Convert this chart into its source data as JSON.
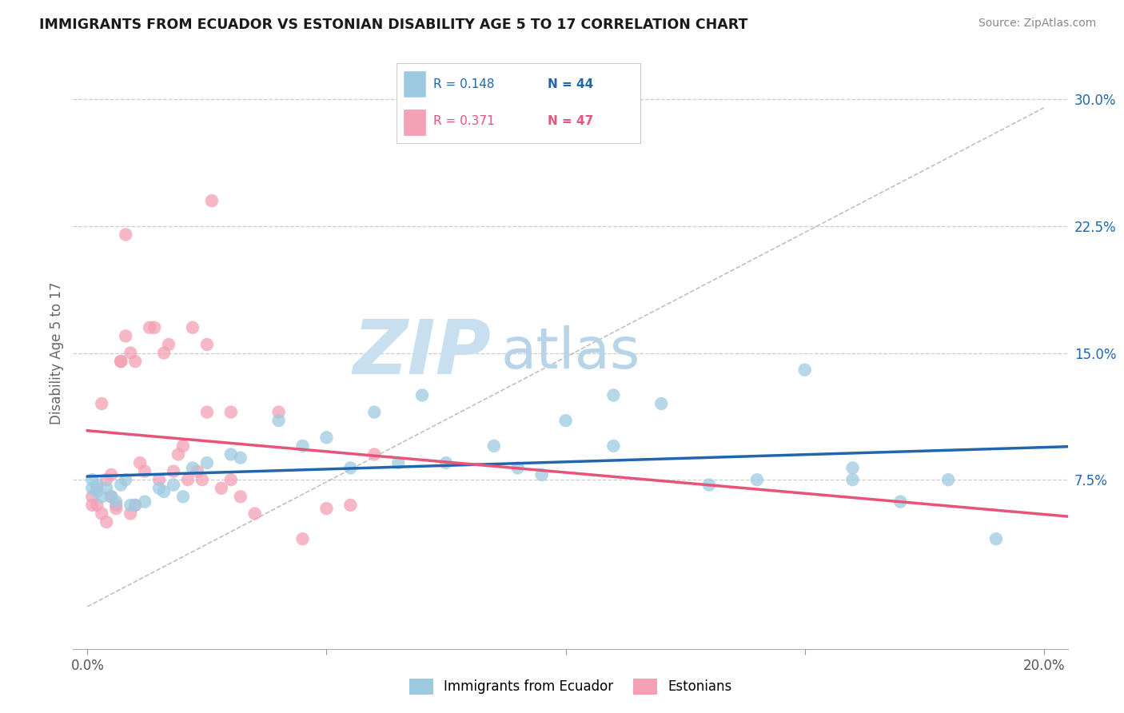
{
  "title": "IMMIGRANTS FROM ECUADOR VS ESTONIAN DISABILITY AGE 5 TO 17 CORRELATION CHART",
  "source": "Source: ZipAtlas.com",
  "ylabel": "Disability Age 5 to 17",
  "xlim": [
    0.0,
    0.205
  ],
  "ylim": [
    -0.025,
    0.325
  ],
  "ytick_right_labels": [
    "7.5%",
    "15.0%",
    "22.5%",
    "30.0%"
  ],
  "ytick_right_vals": [
    0.075,
    0.15,
    0.225,
    0.3
  ],
  "r_ecuador": 0.148,
  "n_ecuador": 44,
  "r_estonian": 0.371,
  "n_estonian": 47,
  "color_ecuador": "#9ecae1",
  "color_estonian": "#f4a0b5",
  "line_color_ecuador": "#2166ac",
  "line_color_estonian": "#e8537a",
  "legend_label_ecuador": "Immigrants from Ecuador",
  "legend_label_estonian": "Estonians",
  "watermark_zip": "ZIP",
  "watermark_atlas": "atlas",
  "watermark_color_zip": "#c8dff0",
  "watermark_color_atlas": "#b8d4e8",
  "ecuador_x": [
    0.001,
    0.001,
    0.002,
    0.002,
    0.003,
    0.004,
    0.005,
    0.006,
    0.007,
    0.008,
    0.009,
    0.01,
    0.012,
    0.015,
    0.016,
    0.018,
    0.02,
    0.022,
    0.025,
    0.03,
    0.032,
    0.04,
    0.045,
    0.05,
    0.055,
    0.06,
    0.065,
    0.07,
    0.075,
    0.085,
    0.09,
    0.095,
    0.1,
    0.11,
    0.11,
    0.12,
    0.13,
    0.14,
    0.15,
    0.16,
    0.17,
    0.18,
    0.19,
    0.16
  ],
  "ecuador_y": [
    0.07,
    0.075,
    0.072,
    0.068,
    0.065,
    0.07,
    0.065,
    0.062,
    0.072,
    0.075,
    0.06,
    0.06,
    0.062,
    0.07,
    0.068,
    0.072,
    0.065,
    0.082,
    0.085,
    0.09,
    0.088,
    0.11,
    0.095,
    0.1,
    0.082,
    0.115,
    0.085,
    0.125,
    0.085,
    0.095,
    0.082,
    0.078,
    0.11,
    0.095,
    0.125,
    0.12,
    0.072,
    0.075,
    0.14,
    0.082,
    0.062,
    0.075,
    0.04,
    0.075
  ],
  "estonian_x": [
    0.001,
    0.001,
    0.002,
    0.002,
    0.003,
    0.003,
    0.004,
    0.004,
    0.005,
    0.005,
    0.006,
    0.006,
    0.007,
    0.007,
    0.008,
    0.008,
    0.009,
    0.009,
    0.01,
    0.01,
    0.011,
    0.012,
    0.013,
    0.014,
    0.015,
    0.016,
    0.017,
    0.018,
    0.019,
    0.02,
    0.021,
    0.022,
    0.023,
    0.024,
    0.025,
    0.026,
    0.028,
    0.03,
    0.032,
    0.035,
    0.04,
    0.045,
    0.05,
    0.055,
    0.06,
    0.03,
    0.025
  ],
  "estonian_y": [
    0.065,
    0.06,
    0.07,
    0.06,
    0.12,
    0.055,
    0.075,
    0.05,
    0.078,
    0.065,
    0.06,
    0.058,
    0.145,
    0.145,
    0.22,
    0.16,
    0.15,
    0.055,
    0.145,
    0.06,
    0.085,
    0.08,
    0.165,
    0.165,
    0.075,
    0.15,
    0.155,
    0.08,
    0.09,
    0.095,
    0.075,
    0.165,
    0.08,
    0.075,
    0.155,
    0.24,
    0.07,
    0.075,
    0.065,
    0.055,
    0.115,
    0.04,
    0.058,
    0.06,
    0.09,
    0.115,
    0.115
  ],
  "ref_line_x": [
    0.0,
    0.2
  ],
  "ref_line_y": [
    0.0,
    0.295
  ]
}
